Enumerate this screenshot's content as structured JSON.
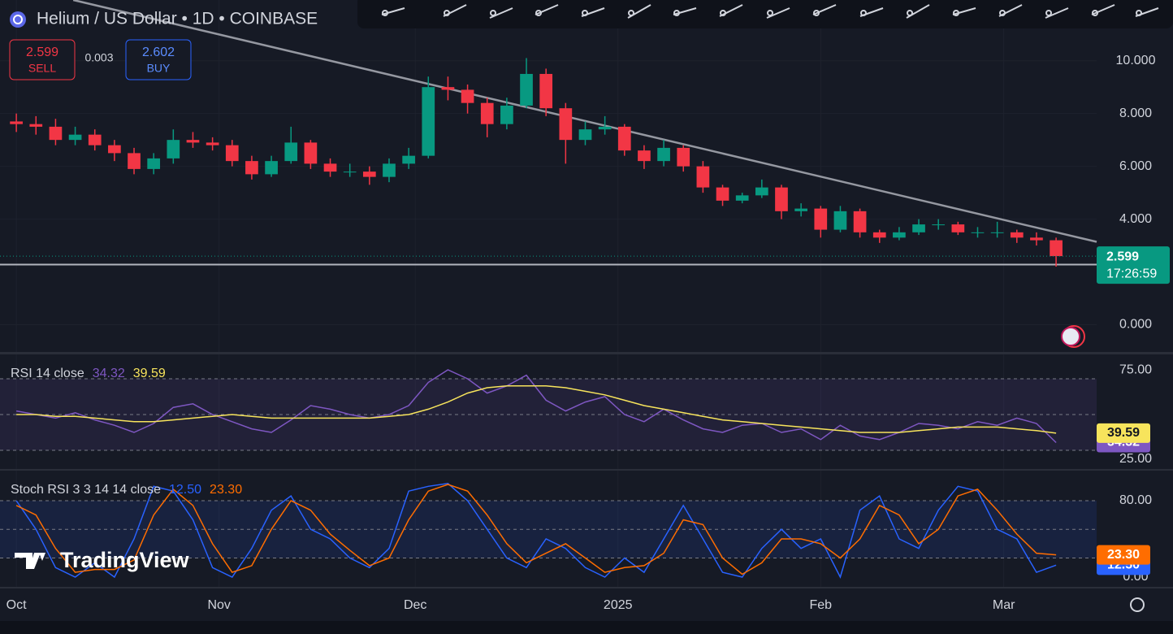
{
  "header": {
    "sell": "2.599",
    "sell_label": "SELL",
    "spread": "0.003",
    "buy": "2.602",
    "buy_label": "BUY",
    "countdown": "17:26:59",
    "logo": "TradingView"
  },
  "chart_data": [
    {
      "type": "candlestick",
      "title": "Helium / US Dollar • 1D • COINBASE",
      "x": [
        0,
        3,
        6,
        9,
        12,
        15,
        18,
        21,
        24,
        27,
        30,
        33,
        36,
        39,
        42,
        45,
        48,
        51,
        54,
        57,
        60,
        63,
        66,
        69,
        72,
        75,
        78,
        81,
        84,
        87,
        90,
        93,
        96,
        99,
        102,
        105,
        108,
        111,
        114,
        117,
        120,
        123,
        126,
        129,
        132,
        135,
        138,
        141,
        144,
        147,
        150,
        153,
        156,
        159
      ],
      "open": [
        7.7,
        7.6,
        7.5,
        7.0,
        7.2,
        6.8,
        6.5,
        5.9,
        6.3,
        7.0,
        6.9,
        6.8,
        6.2,
        5.7,
        6.2,
        6.9,
        6.1,
        5.8,
        5.8,
        5.6,
        6.1,
        6.4,
        9.0,
        8.9,
        8.4,
        7.6,
        8.3,
        9.5,
        8.2,
        7.0,
        7.4,
        7.5,
        6.6,
        6.2,
        6.7,
        6.0,
        5.2,
        4.7,
        4.9,
        5.2,
        4.3,
        4.4,
        3.6,
        4.3,
        3.5,
        3.3,
        3.5,
        3.8,
        3.8,
        3.5,
        3.5,
        3.5,
        3.3,
        3.2
      ],
      "high": [
        8.0,
        7.9,
        7.8,
        7.5,
        7.4,
        7.0,
        6.7,
        6.5,
        7.4,
        7.3,
        7.1,
        7.0,
        6.4,
        6.4,
        7.5,
        7.0,
        6.3,
        6.1,
        6.0,
        6.3,
        6.7,
        9.4,
        9.4,
        9.1,
        8.6,
        8.6,
        10.1,
        9.7,
        8.4,
        7.7,
        7.9,
        7.6,
        6.8,
        7.0,
        6.8,
        6.2,
        5.3,
        5.0,
        5.5,
        5.3,
        4.6,
        4.5,
        4.5,
        4.4,
        3.6,
        3.7,
        4.0,
        4.0,
        3.9,
        3.7,
        3.9,
        3.6,
        3.5,
        3.3
      ],
      "low": [
        7.3,
        7.2,
        6.8,
        6.8,
        6.6,
        6.2,
        5.7,
        5.7,
        6.1,
        6.7,
        6.6,
        6.0,
        5.5,
        5.6,
        6.1,
        5.9,
        5.6,
        5.6,
        5.3,
        5.4,
        5.9,
        6.3,
        8.5,
        8.0,
        7.1,
        7.4,
        8.2,
        7.9,
        6.1,
        6.8,
        7.2,
        6.4,
        5.9,
        6.0,
        5.8,
        5.0,
        4.5,
        4.6,
        4.8,
        4.0,
        4.1,
        3.3,
        3.5,
        3.3,
        3.1,
        3.2,
        3.4,
        3.6,
        3.4,
        3.3,
        3.3,
        3.1,
        3.0,
        2.2
      ],
      "close": [
        7.6,
        7.5,
        7.0,
        7.2,
        6.8,
        6.5,
        5.9,
        6.3,
        7.0,
        6.9,
        6.8,
        6.2,
        5.7,
        6.2,
        6.9,
        6.1,
        5.8,
        5.8,
        5.6,
        6.1,
        6.4,
        9.0,
        8.9,
        8.4,
        7.6,
        8.3,
        9.5,
        8.2,
        7.0,
        7.4,
        7.5,
        6.6,
        6.2,
        6.7,
        6.0,
        5.2,
        4.7,
        4.9,
        5.2,
        4.3,
        4.4,
        3.6,
        4.3,
        3.5,
        3.3,
        3.5,
        3.8,
        3.8,
        3.5,
        3.5,
        3.5,
        3.3,
        3.2,
        2.599
      ],
      "up_color": "#089981",
      "down_color": "#f23645",
      "trendline": {
        "x": [
          8.7,
          165.2
        ],
        "values": [
          12.3,
          3.14
        ],
        "color": "#9598a1"
      },
      "hline": {
        "value": 2.28,
        "color": "#b2b5be"
      },
      "xlim": [
        -2.5,
        165.2
      ],
      "xticks": [
        {
          "value": 0,
          "label": "Oct"
        },
        {
          "value": 31,
          "label": "Nov"
        },
        {
          "value": 61,
          "label": "Dec"
        },
        {
          "value": 92,
          "label": "2025"
        },
        {
          "value": 123,
          "label": "Feb"
        },
        {
          "value": 151,
          "label": "Mar"
        }
      ],
      "ylim": [
        -1,
        12.3
      ],
      "yticks": [
        {
          "value": 0,
          "label": "0.000"
        },
        {
          "value": 4,
          "label": "4.000"
        },
        {
          "value": 6,
          "label": "6.000"
        },
        {
          "value": 8,
          "label": "8.000"
        },
        {
          "value": 10,
          "label": "10.000"
        }
      ],
      "grid": true
    },
    {
      "type": "line",
      "title": "RSI 14 close",
      "x": [
        0,
        3,
        6,
        9,
        12,
        15,
        18,
        21,
        24,
        27,
        30,
        33,
        36,
        39,
        42,
        45,
        48,
        51,
        54,
        57,
        60,
        63,
        66,
        69,
        72,
        75,
        78,
        81,
        84,
        87,
        90,
        93,
        96,
        99,
        102,
        105,
        108,
        111,
        114,
        117,
        120,
        123,
        126,
        129,
        132,
        135,
        138,
        141,
        144,
        147,
        150,
        153,
        156,
        159
      ],
      "series": [
        {
          "color": "#7e57c2",
          "values": [
            52,
            50,
            48,
            51,
            47,
            44,
            40,
            45,
            54,
            56,
            50,
            46,
            42,
            40,
            47,
            55,
            53,
            50,
            48,
            50,
            55,
            68,
            75,
            70,
            62,
            66,
            72,
            58,
            52,
            57,
            60,
            50,
            46,
            53,
            47,
            42,
            40,
            44,
            45,
            40,
            42,
            36,
            44,
            38,
            36,
            40,
            45,
            44,
            42,
            46,
            44,
            48,
            45,
            34.32
          ]
        },
        {
          "color": "#f7e45c",
          "values": [
            50,
            50,
            49,
            49,
            48,
            47,
            46,
            46,
            47,
            48,
            49,
            50,
            49,
            48,
            48,
            48,
            48,
            48,
            48,
            49,
            50,
            53,
            57,
            62,
            65,
            66,
            66,
            66,
            65,
            63,
            61,
            58,
            55,
            53,
            51,
            49,
            47,
            46,
            45,
            44,
            43,
            42,
            41,
            40,
            40,
            40,
            41,
            42,
            43,
            43,
            43,
            42,
            41,
            39.59
          ]
        }
      ],
      "levels": [
        70,
        50,
        30
      ],
      "band_color": "#7e57c2",
      "xlim": [
        -2.5,
        165.2
      ],
      "ylim": [
        19.1,
        83.2
      ],
      "yticks": [
        {
          "value": 75,
          "label": "75.00"
        },
        {
          "value": 25,
          "label": "25.00"
        }
      ]
    },
    {
      "type": "line",
      "title": "Stoch RSI 3 3 14 14 close",
      "x": [
        0,
        3,
        6,
        9,
        12,
        15,
        18,
        21,
        24,
        27,
        30,
        33,
        36,
        39,
        42,
        45,
        48,
        51,
        54,
        57,
        60,
        63,
        66,
        69,
        72,
        75,
        78,
        81,
        84,
        87,
        90,
        93,
        96,
        99,
        102,
        105,
        108,
        111,
        114,
        117,
        120,
        123,
        126,
        129,
        132,
        135,
        138,
        141,
        144,
        147,
        150,
        153,
        156,
        159
      ],
      "series": [
        {
          "color": "#2962ff",
          "values": [
            80,
            50,
            10,
            0,
            15,
            0,
            40,
            95,
            90,
            60,
            10,
            0,
            30,
            70,
            85,
            50,
            40,
            20,
            10,
            30,
            90,
            95,
            98,
            80,
            50,
            20,
            10,
            40,
            30,
            10,
            0,
            20,
            5,
            40,
            75,
            40,
            5,
            0,
            30,
            50,
            30,
            40,
            0,
            70,
            85,
            40,
            30,
            70,
            95,
            90,
            50,
            40,
            5,
            12.5
          ],
          "value_labels": [
            null,
            null,
            null,
            null,
            null,
            null,
            null,
            null,
            null,
            null,
            null,
            null,
            null,
            null,
            null,
            null,
            null,
            null,
            null,
            null,
            null,
            null,
            null,
            null,
            null,
            null,
            null,
            null,
            null,
            null,
            null,
            null,
            null,
            null,
            null,
            null,
            null,
            null,
            null,
            null,
            null,
            null,
            null,
            null,
            null,
            null,
            null,
            null,
            null,
            null,
            null,
            null,
            null,
            "12.50"
          ]
        },
        {
          "color": "#ff6d00",
          "values": [
            75,
            65,
            30,
            5,
            8,
            8,
            18,
            65,
            92,
            75,
            35,
            5,
            12,
            50,
            80,
            70,
            45,
            28,
            12,
            20,
            60,
            90,
            97,
            90,
            65,
            35,
            15,
            25,
            35,
            20,
            5,
            10,
            12,
            25,
            60,
            55,
            20,
            3,
            15,
            40,
            40,
            35,
            20,
            40,
            75,
            65,
            35,
            50,
            85,
            92,
            70,
            45,
            25,
            23.3
          ],
          "value_labels": [
            null,
            null,
            null,
            null,
            null,
            null,
            null,
            null,
            null,
            null,
            null,
            null,
            null,
            null,
            null,
            null,
            null,
            null,
            null,
            null,
            null,
            null,
            null,
            null,
            null,
            null,
            null,
            null,
            null,
            null,
            null,
            null,
            null,
            null,
            null,
            null,
            null,
            null,
            null,
            null,
            null,
            null,
            null,
            null,
            null,
            null,
            null,
            null,
            null,
            null,
            null,
            null,
            null,
            "23.30"
          ]
        }
      ],
      "levels": [
        80,
        50,
        20
      ],
      "band_color": "#2962ff",
      "xlim": [
        -2.5,
        165.2
      ],
      "ylim": [
        -10.2,
        110.6
      ],
      "yticks": [
        {
          "value": 80,
          "label": "80.00"
        },
        {
          "value": 0,
          "label": "0.00"
        }
      ]
    }
  ]
}
